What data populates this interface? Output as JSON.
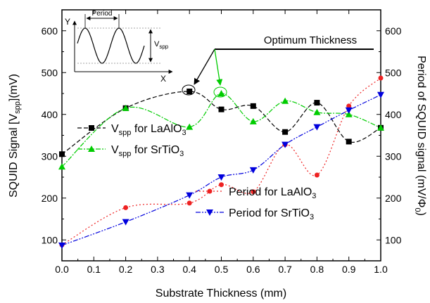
{
  "chart_data": {
    "type": "line",
    "xlabel": "Substrate Thickness (mm)",
    "ylabel_left": {
      "main": "SQUID Signal [V",
      "sub": "spp",
      "tail": "](mV)"
    },
    "ylabel_right": {
      "main": "Period of SQUID signal (mV/Φ",
      "sub": "0",
      "tail": ")"
    },
    "xlim": [
      0.0,
      1.0
    ],
    "ylim": [
      50,
      650
    ],
    "x_ticks": [
      "0.0",
      "0.1",
      "0.2",
      "0.3",
      "0.4",
      "0.5",
      "0.6",
      "0.7",
      "0.8",
      "0.9",
      "1.0"
    ],
    "y_ticks": [
      "100",
      "200",
      "300",
      "400",
      "500",
      "600"
    ],
    "legend_placement": "center-left",
    "series": [
      {
        "name": {
          "main": "V",
          "sub": "spp",
          "tail": " for LaAlO",
          "sub2": "3"
        },
        "color": "#000000",
        "marker": "square",
        "x": [
          0.0,
          0.2,
          0.4,
          0.5,
          0.6,
          0.7,
          0.8,
          0.9,
          1.0
        ],
        "y": [
          305,
          415,
          455,
          412,
          420,
          358,
          428,
          335,
          368
        ]
      },
      {
        "name": {
          "main": "V",
          "sub": "spp",
          "tail": " for SrTiO",
          "sub2": "3"
        },
        "color": "#00cc00",
        "marker": "triangle-up",
        "x": [
          0.0,
          0.2,
          0.4,
          0.5,
          0.6,
          0.7,
          0.8,
          0.9,
          1.0
        ],
        "y": [
          275,
          415,
          370,
          450,
          383,
          432,
          405,
          400,
          368
        ]
      },
      {
        "name": {
          "main": "Period for LaAlO",
          "sub": "3"
        },
        "color": "#ee2222",
        "marker": "circle",
        "x": [
          0.0,
          0.2,
          0.4,
          0.5,
          0.6,
          0.7,
          0.8,
          0.9,
          1.0
        ],
        "y": [
          88,
          177,
          188,
          232,
          215,
          328,
          255,
          420,
          487
        ]
      },
      {
        "name": {
          "main": "Period for SrTiO",
          "sub": "3"
        },
        "color": "#0000dd",
        "marker": "triangle-down",
        "x": [
          0.0,
          0.2,
          0.4,
          0.5,
          0.6,
          0.7,
          0.8,
          0.9,
          1.0
        ],
        "y": [
          87,
          143,
          207,
          250,
          267,
          328,
          370,
          410,
          447
        ]
      }
    ],
    "annotation": {
      "text": "Optimum Thickness",
      "targets": [
        [
          0.4,
          455
        ],
        [
          0.5,
          450
        ]
      ]
    },
    "inset": {
      "y_label": "Y",
      "x_label": "X",
      "period_label": "Period",
      "amplitude_label": {
        "main": "V",
        "sub": "spp"
      }
    }
  }
}
